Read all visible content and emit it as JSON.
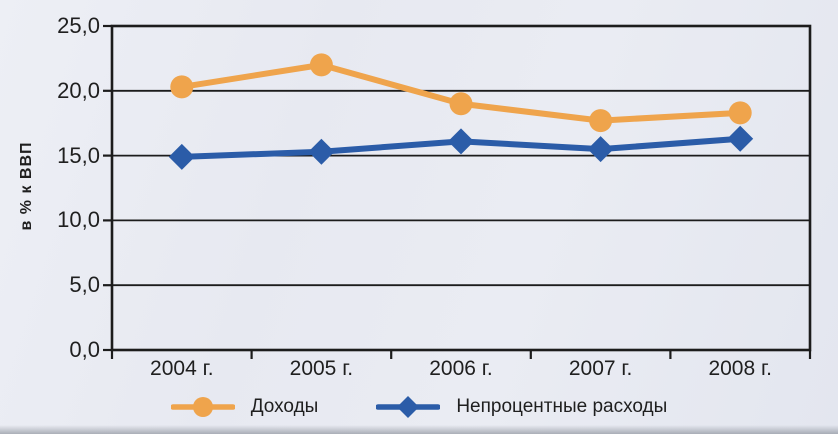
{
  "chart_data": {
    "type": "line",
    "title": "",
    "ylabel": "в % к ВВП",
    "categories": [
      "2004 г.",
      "2005 г.",
      "2006 г.",
      "2007 г.",
      "2008 г."
    ],
    "series": [
      {
        "name": "Доходы",
        "color": "#efa44c",
        "marker": "circle",
        "values": [
          20.3,
          22.0,
          19.0,
          17.7,
          18.3
        ]
      },
      {
        "name": "Непроцентные расходы",
        "color": "#2b5ca8",
        "marker": "diamond",
        "values": [
          14.9,
          15.3,
          16.1,
          15.5,
          16.3
        ]
      }
    ],
    "ylim": [
      0,
      25
    ],
    "ytick_step": 5,
    "ytick_labels": [
      "0,0",
      "5,0",
      "10,0",
      "15,0",
      "20,0",
      "25,0"
    ],
    "grid": true,
    "gridline_color": "#1c1c1c",
    "axis_color": "#1c1c1c",
    "background_color": "#e9ebf2",
    "legend_position": "bottom"
  }
}
